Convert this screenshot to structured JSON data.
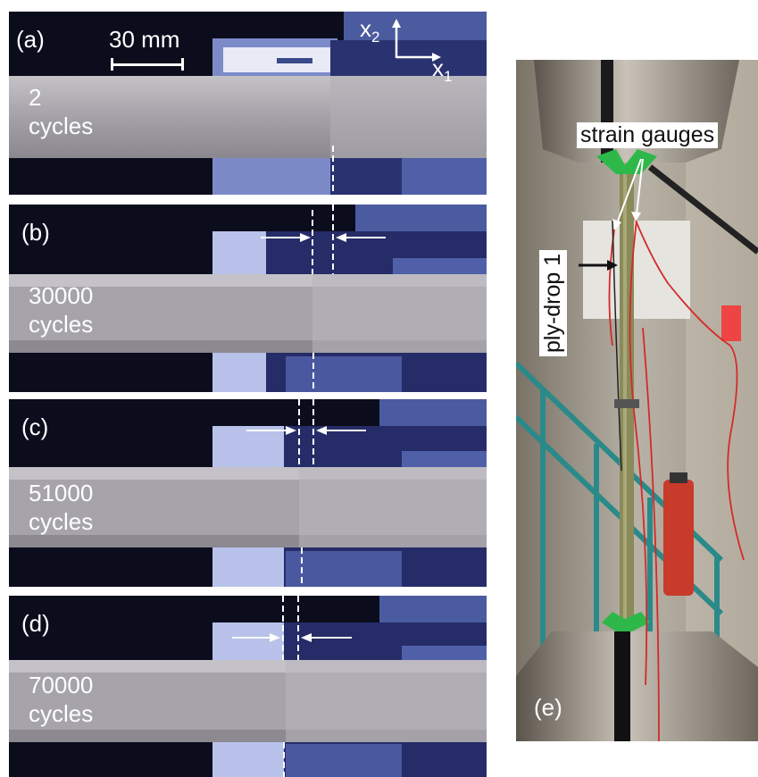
{
  "scale_bar": {
    "label": "30 mm"
  },
  "axes": {
    "x2": "x",
    "x2_sub": "2",
    "x1": "x",
    "x1_sub": "1"
  },
  "panels": [
    {
      "tag": "(a)",
      "count": "2",
      "unit": "cycles"
    },
    {
      "tag": "(b)",
      "count": "30000",
      "unit": "cycles"
    },
    {
      "tag": "(c)",
      "count": "51000",
      "unit": "cycles"
    },
    {
      "tag": "(d)",
      "count": "70000",
      "unit": "cycles"
    }
  ],
  "photo": {
    "tag": "(e)",
    "strain_gauges_label": "strain gauges",
    "ply_drop_label": "ply-drop 1"
  },
  "colors": {
    "specimen": "#9c9a9e",
    "background_dark": "#0a0c1a",
    "monitor_blue": "#4a5a9e",
    "gripper_green": "#2eb84a",
    "wire_red": "#d42a2a",
    "stair_teal": "#2a8a8a"
  }
}
